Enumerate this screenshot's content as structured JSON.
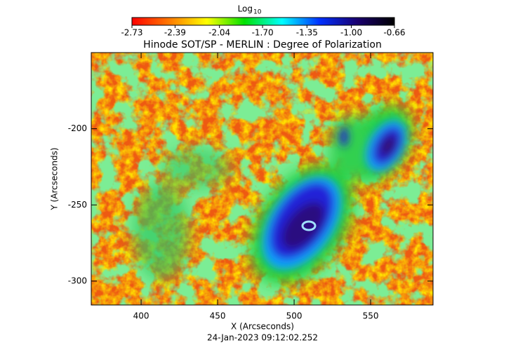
{
  "chart_data": {
    "type": "heatmap",
    "title": "Hinode SOT/SP - MERLIN : Degree of Polarization",
    "x_label": "X (Arcseconds)",
    "y_label": "Y (Arcseconds)",
    "timestamp": "24-Jan-2023 09:12:02.252",
    "xlim": [
      367.4,
      590.8
    ],
    "ylim": [
      -315.7,
      -150
    ],
    "xticks": [
      400,
      450,
      500,
      550
    ],
    "yticks": [
      -200,
      -250,
      -300
    ],
    "colorbar": {
      "label": "Log",
      "label_sub": "10",
      "clim": [
        -2.73,
        -0.66
      ],
      "ticks": [
        -2.73,
        -2.39,
        -2.04,
        {
          "value": -1.7,
          "label": "-1.70"
        },
        -1.35,
        {
          "value": -1,
          "label": "-1.00"
        },
        -0.66
      ],
      "colormap": [
        "#ff0000",
        "#ff7a00",
        "#ffff00",
        "#00e000",
        "#00ffff",
        "#0030ff",
        "#1a0070",
        "#000000"
      ]
    }
  }
}
